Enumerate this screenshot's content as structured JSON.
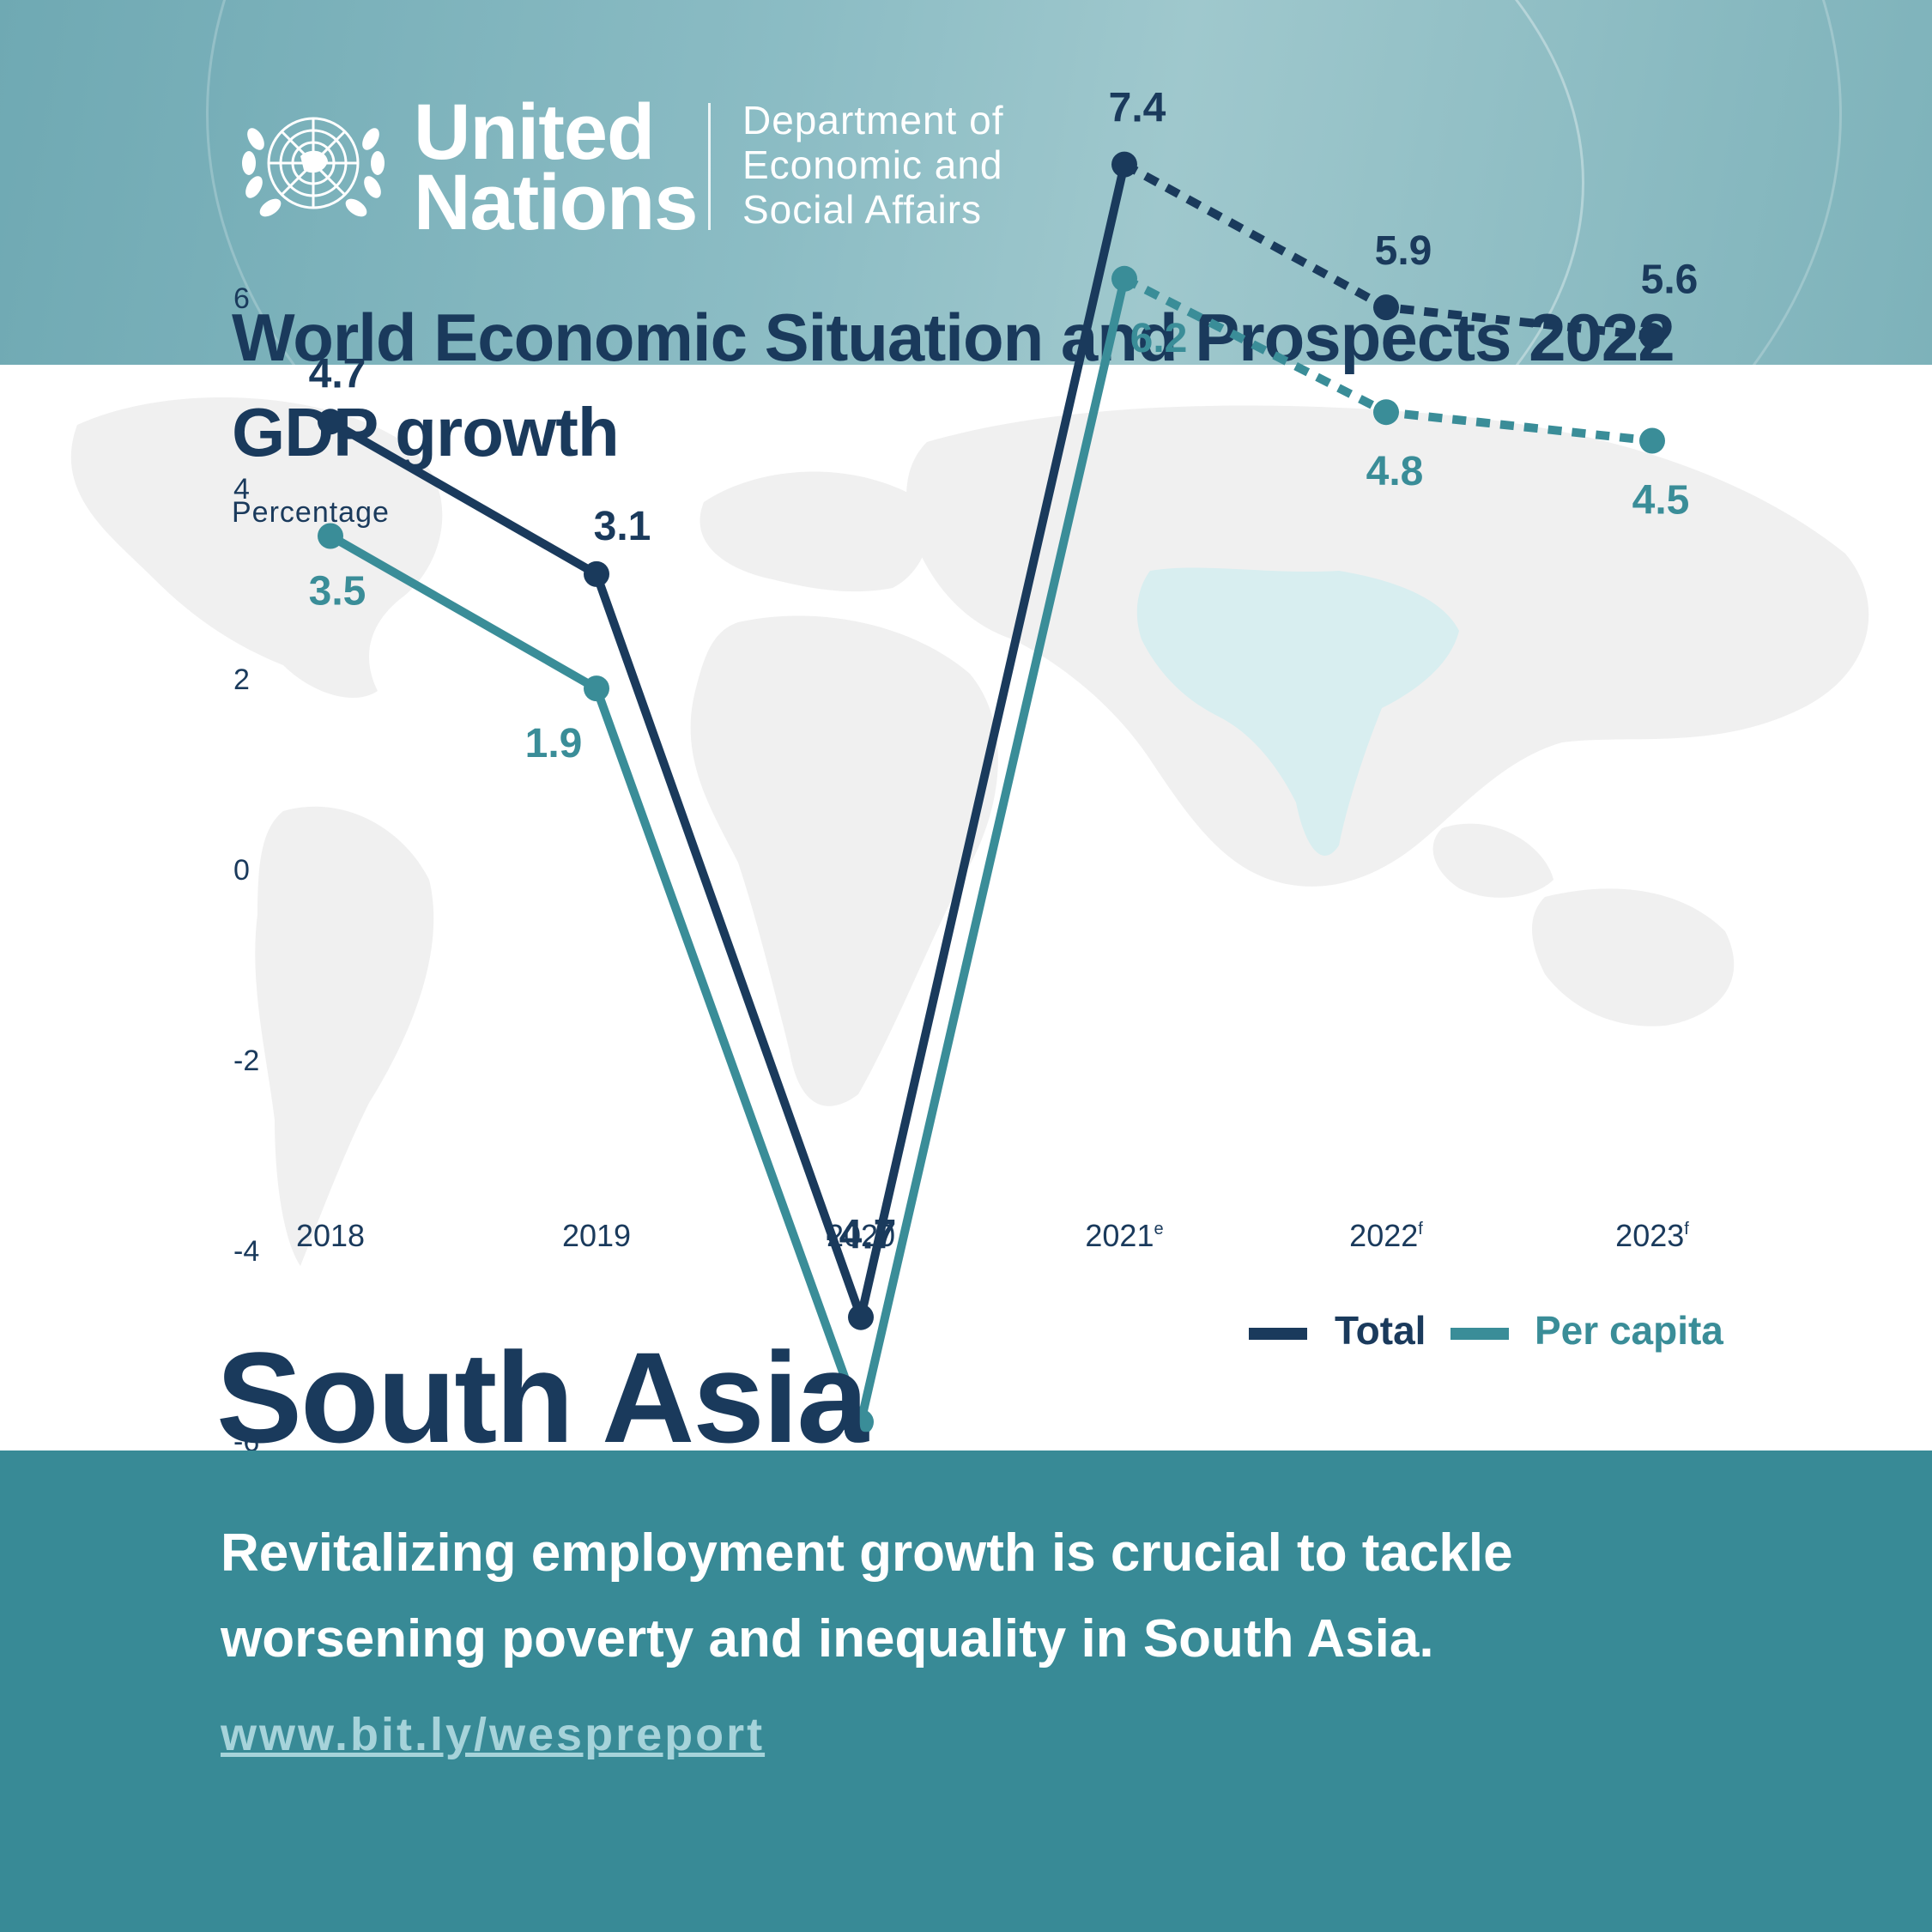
{
  "header": {
    "org_line1": "United",
    "org_line2": "Nations",
    "dept_line1": "Department of",
    "dept_line2": "Economic and",
    "dept_line3": "Social Affairs",
    "title": "World Economic Situation and Prospects 2022",
    "subtitle": "GDP growth"
  },
  "colors": {
    "total": "#1a3a5c",
    "per_capita": "#3a8d98",
    "header_band": "#8bbcc4",
    "footer_band": "#388a96",
    "map": "#f0f0f0",
    "highlight_region": "#d8eef0"
  },
  "chart_data": {
    "type": "line",
    "ylabel": "Percentage",
    "ylim": [
      -7,
      7
    ],
    "yticks": [
      6,
      4,
      2,
      0,
      -2,
      -4,
      -6
    ],
    "x_labels": [
      {
        "year": "2018",
        "sup": ""
      },
      {
        "year": "2019",
        "sup": ""
      },
      {
        "year": "2020",
        "sup": ""
      },
      {
        "year": "2021",
        "sup": "e"
      },
      {
        "year": "2022",
        "sup": "f"
      },
      {
        "year": "2023",
        "sup": "f"
      }
    ],
    "solid_until_index": 3,
    "series": [
      {
        "name": "Total",
        "values": [
          4.7,
          3.1,
          -4.7,
          7.4,
          5.9,
          5.6
        ],
        "labels": [
          "4.7",
          "3.1",
          "-4.7",
          "7.4",
          "5.9",
          "5.6"
        ]
      },
      {
        "name": "Per capita",
        "values": [
          3.5,
          1.9,
          -5.8,
          6.2,
          4.8,
          4.5
        ],
        "labels": [
          "3.5",
          "1.9",
          "-5.8",
          "6.2",
          "4.8",
          "4.5"
        ]
      }
    ],
    "grid": false,
    "legend_position": "bottom-right"
  },
  "region": "South Asia",
  "footer": {
    "message": "Revitalizing employment growth is crucial to tackle worsening poverty and inequality in South Asia.",
    "link": "www.bit.ly/wespreport"
  }
}
